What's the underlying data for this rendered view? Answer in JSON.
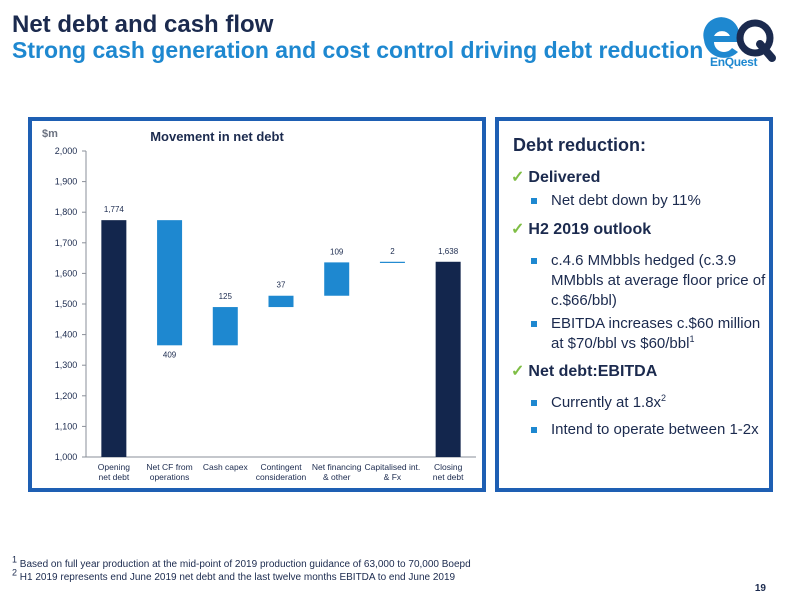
{
  "header": {
    "title": "Net debt and cash flow",
    "subtitle": "Strong cash generation and cost control driving debt reduction"
  },
  "logo": {
    "mark": "eQ",
    "text": "EnQuest",
    "icon": "enquest-logo"
  },
  "colors": {
    "navy": "#1b2a4e",
    "blue": "#1e88d0",
    "panel_border": "#1e5fb3",
    "check_green": "#7fbe45",
    "bar_total": "#13264d",
    "bar_decrease": "#1e88d0"
  },
  "chart_data": {
    "type": "bar",
    "subtype": "waterfall",
    "title": "Movement in net debt",
    "ylabel": "$m",
    "ylim": [
      1000,
      2000
    ],
    "yticks": [
      "1,000",
      "1,100",
      "1,200",
      "1,300",
      "1,400",
      "1,500",
      "1,600",
      "1,700",
      "1,800",
      "1,900",
      "2,000"
    ],
    "grid": false,
    "categories": [
      [
        "Opening",
        "net debt"
      ],
      [
        "Net CF from",
        "operations"
      ],
      [
        "Cash capex"
      ],
      [
        "Contingent",
        "consideration"
      ],
      [
        "Net financing",
        "& other"
      ],
      [
        "Capitalised int.",
        "& Fx"
      ],
      [
        "Closing",
        "net debt"
      ]
    ],
    "bars": [
      {
        "kind": "total",
        "start": 0,
        "end": 1774,
        "label": "1,774"
      },
      {
        "kind": "change",
        "start": 1774,
        "end": 1365,
        "label": "409"
      },
      {
        "kind": "change",
        "start": 1365,
        "end": 1490,
        "label": "125"
      },
      {
        "kind": "change",
        "start": 1490,
        "end": 1527,
        "label": "37"
      },
      {
        "kind": "change",
        "start": 1527,
        "end": 1636,
        "label": "109"
      },
      {
        "kind": "change",
        "start": 1636,
        "end": 1638,
        "label": "2"
      },
      {
        "kind": "total",
        "start": 0,
        "end": 1638,
        "label": "1,638"
      }
    ]
  },
  "right_panel": {
    "heading": "Debt reduction:",
    "check_glyph": "✓",
    "sections": [
      {
        "title": "Delivered",
        "bullets": [
          {
            "text": "Net debt down by 11%"
          }
        ]
      },
      {
        "title": "H2 2019 outlook",
        "bullets": [
          {
            "text": "c.4.6 MMbbls hedged (c.3.9 MMbbls at average floor price of c.$66/bbl)"
          },
          {
            "text": "EBITDA increases c.$60 million at $70/bbl vs $60/bbl",
            "sup": "1"
          }
        ]
      },
      {
        "title": "Net debt:EBITDA",
        "bullets": [
          {
            "text": "Currently at 1.8x",
            "sup": "2"
          },
          {
            "text": "Intend to operate between 1-2x"
          }
        ]
      }
    ]
  },
  "footnotes": [
    {
      "num": "1",
      "text": "Based on full year production at the mid-point of 2019 production guidance of 63,000 to 70,000 Boepd"
    },
    {
      "num": "2",
      "text": "H1 2019 represents end June 2019 net debt and the last twelve months EBITDA to end June 2019"
    }
  ],
  "page_number": "19"
}
